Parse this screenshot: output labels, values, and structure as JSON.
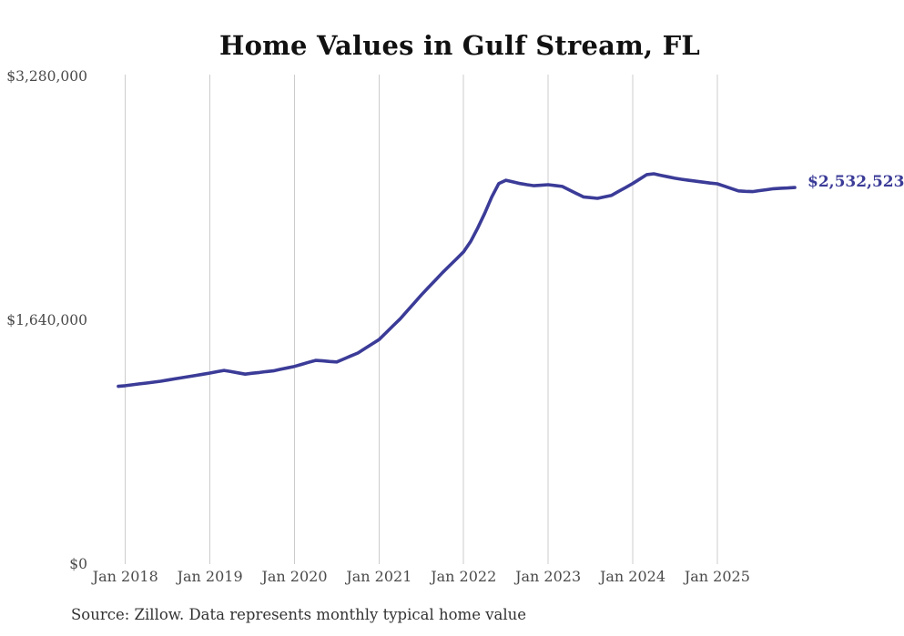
{
  "page": {
    "source_note": "Source: Zillow. Data represents monthly typical home value"
  },
  "colors": {
    "line": "#3b3b98",
    "grid": "#cccccc",
    "title_text": "#111111",
    "axis_text": "#4a4a4a",
    "source_text": "#333333",
    "background": "#ffffff"
  },
  "chart_data": {
    "type": "line",
    "title": "Home Values in Gulf Stream, FL",
    "legend": "none",
    "grid": "vertical-only",
    "x_interval": "monthly",
    "x_start": "Dec 2017",
    "x_tick_labels": [
      "Jan 2018",
      "Jan 2019",
      "Jan 2020",
      "Jan 2021",
      "Jan 2022",
      "Jan 2023",
      "Jan 2024",
      "Jan 2025"
    ],
    "y_axis_range": [
      0,
      3280000
    ],
    "y_ticks": [
      {
        "label": "$3,280,000",
        "value": 3280000
      },
      {
        "label": "$1,640,000",
        "value": 1640000
      },
      {
        "label": "$0",
        "value": 0
      }
    ],
    "end_label": "$2,532,523",
    "series": [
      {
        "name": "Monthly typical home value",
        "values": [
          1196000,
          1200000,
          1206000,
          1212000,
          1218000,
          1224000,
          1230000,
          1238000,
          1246000,
          1254000,
          1261000,
          1269000,
          1277000,
          1285000,
          1294000,
          1303000,
          1295000,
          1286000,
          1278000,
          1284000,
          1289000,
          1295000,
          1300000,
          1310000,
          1320000,
          1330000,
          1343000,
          1357000,
          1370000,
          1367000,
          1363000,
          1360000,
          1380000,
          1400000,
          1420000,
          1450000,
          1480000,
          1510000,
          1557000,
          1603000,
          1650000,
          1703000,
          1757000,
          1810000,
          1860000,
          1910000,
          1960000,
          2007000,
          2053000,
          2100000,
          2170000,
          2260000,
          2360000,
          2470000,
          2560000,
          2582000,
          2571000,
          2560000,
          2552000,
          2545000,
          2548000,
          2552000,
          2546000,
          2540000,
          2517000,
          2493000,
          2470000,
          2465000,
          2460000,
          2470000,
          2480000,
          2507000,
          2533000,
          2560000,
          2590000,
          2620000,
          2625000,
          2615000,
          2605000,
          2595000,
          2588000,
          2581000,
          2575000,
          2569000,
          2563000,
          2558000,
          2542000,
          2526000,
          2510000,
          2507000,
          2505000,
          2512000,
          2518000,
          2525000,
          2528000,
          2530000,
          2532523
        ]
      }
    ]
  }
}
